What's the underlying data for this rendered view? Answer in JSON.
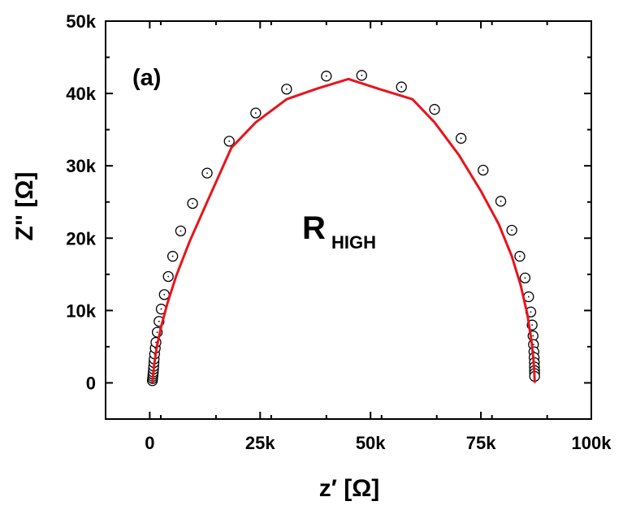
{
  "chart_data": {
    "type": "scatter",
    "title": "",
    "xlabel": "z′ [Ω]",
    "ylabel": "Z\" [Ω]",
    "xlim": [
      -10000,
      100000
    ],
    "ylim": [
      -5000,
      50000
    ],
    "grid": false,
    "legend": "none",
    "x_ticks": [
      {
        "value": 0,
        "label": "0"
      },
      {
        "value": 25000,
        "label": "25k"
      },
      {
        "value": 50000,
        "label": "50k"
      },
      {
        "value": 75000,
        "label": "75k"
      },
      {
        "value": 100000,
        "label": "100k"
      }
    ],
    "y_ticks": [
      {
        "value": 0,
        "label": "0"
      },
      {
        "value": 10000,
        "label": "10k"
      },
      {
        "value": 20000,
        "label": "20k"
      },
      {
        "value": 30000,
        "label": "30k"
      },
      {
        "value": 40000,
        "label": "40k"
      },
      {
        "value": 50000,
        "label": "50k"
      }
    ],
    "annotations": {
      "panel": "(a)",
      "label_main": "R",
      "label_sub": "HIGH"
    },
    "series": [
      {
        "kind": "markers",
        "color": "#000000",
        "x": [
          600,
          650,
          700,
          750,
          800,
          850,
          900,
          950,
          1000,
          1100,
          1250,
          1400,
          1700,
          2100,
          2600,
          3300,
          4200,
          5200,
          7000,
          9700,
          13000,
          18000,
          24000,
          31000,
          40000,
          48000,
          57000,
          64500,
          70500,
          75500,
          79500,
          82000,
          83800,
          85000,
          85800,
          86300,
          86600,
          86800,
          86900,
          87000,
          87050,
          87100,
          87120,
          87140,
          87150,
          87160
        ],
        "y": [
          300,
          600,
          900,
          1200,
          1500,
          1900,
          2300,
          2800,
          3300,
          4000,
          4800,
          5600,
          7000,
          8500,
          10200,
          12200,
          14700,
          17500,
          21000,
          24800,
          29000,
          33400,
          37300,
          40600,
          42400,
          42500,
          40900,
          37800,
          33800,
          29400,
          25100,
          21100,
          17500,
          14500,
          11900,
          9800,
          8000,
          6500,
          5300,
          4300,
          3500,
          2800,
          2200,
          1700,
          1300,
          900
        ]
      },
      {
        "kind": "line",
        "color": "#e8141c",
        "x": [
          600,
          1000,
          1600,
          2600,
          4000,
          6000,
          9000,
          13000,
          18500,
          24000,
          31000,
          38000,
          45000,
          52000,
          59500,
          64500,
          70000,
          75000,
          79000,
          82000,
          84000,
          85500,
          86400,
          86900,
          87100,
          87200
        ],
        "y": [
          0,
          2500,
          5000,
          7800,
          11000,
          14800,
          19500,
          25000,
          32500,
          36000,
          39200,
          40700,
          42000,
          40600,
          39200,
          36000,
          31500,
          26500,
          22000,
          17500,
          13500,
          9500,
          6000,
          3200,
          1200,
          0
        ]
      }
    ]
  }
}
